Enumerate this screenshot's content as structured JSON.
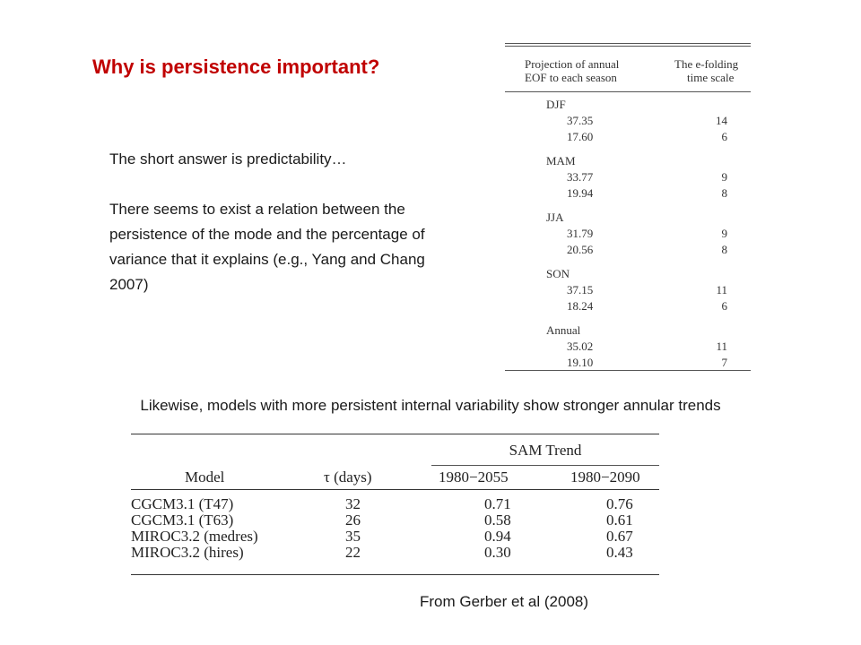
{
  "slide": {
    "title": "Why is persistence important?",
    "body_line1": "The short answer is predictability…",
    "body_para2": "There seems to exist a relation between the persistence of the mode and the percentage of variance that it explains (e.g., Yang and Chang 2007)",
    "likewise": "Likewise, models with more persistent internal variability show stronger annular trends",
    "source": "From Gerber et al (2008)"
  },
  "table1": {
    "header1_line1": "Projection of annual",
    "header1_line2": "EOF to each season",
    "header2_line1": "The e-folding",
    "header2_line2": "time scale",
    "groups": [
      {
        "season": "DJF",
        "rows": [
          {
            "proj": "37.35",
            "efold": "14"
          },
          {
            "proj": "17.60",
            "efold": "6"
          }
        ]
      },
      {
        "season": "MAM",
        "rows": [
          {
            "proj": "33.77",
            "efold": "9"
          },
          {
            "proj": "19.94",
            "efold": "8"
          }
        ]
      },
      {
        "season": "JJA",
        "rows": [
          {
            "proj": "31.79",
            "efold": "9"
          },
          {
            "proj": "20.56",
            "efold": "8"
          }
        ]
      },
      {
        "season": "SON",
        "rows": [
          {
            "proj": "37.15",
            "efold": "11"
          },
          {
            "proj": "18.24",
            "efold": "6"
          }
        ]
      },
      {
        "season": "Annual",
        "rows": [
          {
            "proj": "35.02",
            "efold": "11"
          },
          {
            "proj": "19.10",
            "efold": "7"
          }
        ]
      }
    ]
  },
  "table2": {
    "sam_trend": "SAM Trend",
    "col_model": "Model",
    "col_tau": "τ (days)",
    "col_p1": "1980−2055",
    "col_p2": "1980−2090",
    "rows": [
      {
        "model": "CGCM3.1 (T47)",
        "tau": "32",
        "t1": "0.71",
        "t2": "0.76"
      },
      {
        "model": "CGCM3.1 (T63)",
        "tau": "26",
        "t1": "0.58",
        "t2": "0.61"
      },
      {
        "model": "MIROC3.2 (medres)",
        "tau": "35",
        "t1": "0.94",
        "t2": "0.67"
      },
      {
        "model": "MIROC3.2 (hires)",
        "tau": "22",
        "t1": "0.30",
        "t2": "0.43"
      }
    ]
  },
  "colors": {
    "title": "#c00000",
    "text": "#1a1a1a"
  }
}
